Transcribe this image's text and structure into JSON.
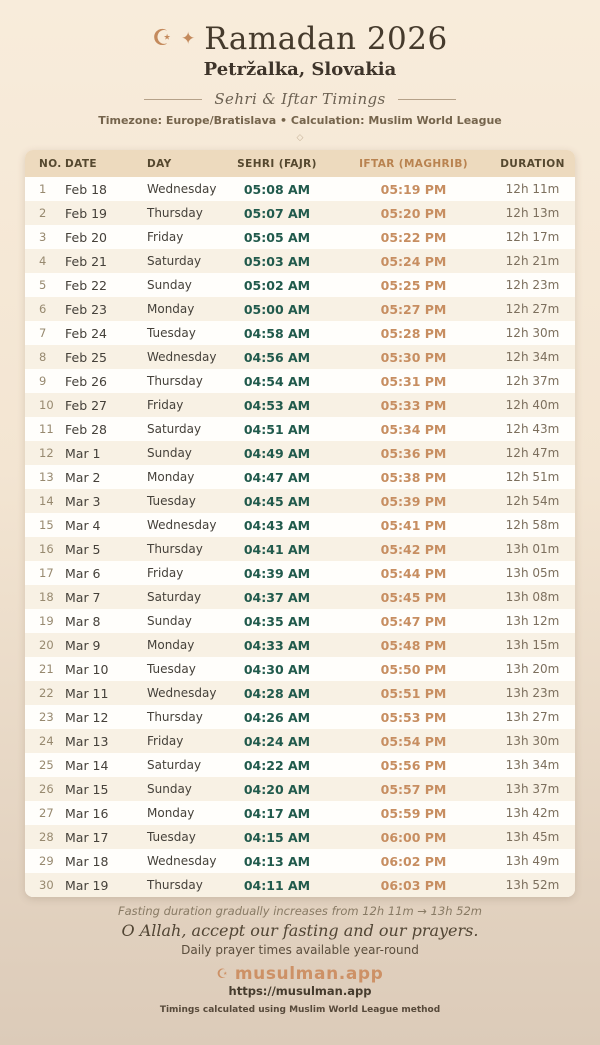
{
  "header": {
    "crescent_icon": "☪",
    "sparkle_icon": "✦",
    "title": "Ramadan 2026",
    "location": "Petržalka, Slovakia",
    "subtitle": "Sehri & Iftar Timings",
    "meta": "Timezone: Europe/Bratislava • Calculation: Muslim World League",
    "ornament": "◇"
  },
  "table": {
    "column_keys": [
      "no",
      "date",
      "day",
      "sehri",
      "iftar",
      "duration"
    ],
    "columns": [
      "NO.",
      "DATE",
      "DAY",
      "SEHRI (FAJR)",
      "IFTAR (MAGHRIB)",
      "DURATION"
    ],
    "rows": [
      [
        "1",
        "Feb 18",
        "Wednesday",
        "05:08 AM",
        "05:19 PM",
        "12h 11m"
      ],
      [
        "2",
        "Feb 19",
        "Thursday",
        "05:07 AM",
        "05:20 PM",
        "12h 13m"
      ],
      [
        "3",
        "Feb 20",
        "Friday",
        "05:05 AM",
        "05:22 PM",
        "12h 17m"
      ],
      [
        "4",
        "Feb 21",
        "Saturday",
        "05:03 AM",
        "05:24 PM",
        "12h 21m"
      ],
      [
        "5",
        "Feb 22",
        "Sunday",
        "05:02 AM",
        "05:25 PM",
        "12h 23m"
      ],
      [
        "6",
        "Feb 23",
        "Monday",
        "05:00 AM",
        "05:27 PM",
        "12h 27m"
      ],
      [
        "7",
        "Feb 24",
        "Tuesday",
        "04:58 AM",
        "05:28 PM",
        "12h 30m"
      ],
      [
        "8",
        "Feb 25",
        "Wednesday",
        "04:56 AM",
        "05:30 PM",
        "12h 34m"
      ],
      [
        "9",
        "Feb 26",
        "Thursday",
        "04:54 AM",
        "05:31 PM",
        "12h 37m"
      ],
      [
        "10",
        "Feb 27",
        "Friday",
        "04:53 AM",
        "05:33 PM",
        "12h 40m"
      ],
      [
        "11",
        "Feb 28",
        "Saturday",
        "04:51 AM",
        "05:34 PM",
        "12h 43m"
      ],
      [
        "12",
        "Mar 1",
        "Sunday",
        "04:49 AM",
        "05:36 PM",
        "12h 47m"
      ],
      [
        "13",
        "Mar 2",
        "Monday",
        "04:47 AM",
        "05:38 PM",
        "12h 51m"
      ],
      [
        "14",
        "Mar 3",
        "Tuesday",
        "04:45 AM",
        "05:39 PM",
        "12h 54m"
      ],
      [
        "15",
        "Mar 4",
        "Wednesday",
        "04:43 AM",
        "05:41 PM",
        "12h 58m"
      ],
      [
        "16",
        "Mar 5",
        "Thursday",
        "04:41 AM",
        "05:42 PM",
        "13h 01m"
      ],
      [
        "17",
        "Mar 6",
        "Friday",
        "04:39 AM",
        "05:44 PM",
        "13h 05m"
      ],
      [
        "18",
        "Mar 7",
        "Saturday",
        "04:37 AM",
        "05:45 PM",
        "13h 08m"
      ],
      [
        "19",
        "Mar 8",
        "Sunday",
        "04:35 AM",
        "05:47 PM",
        "13h 12m"
      ],
      [
        "20",
        "Mar 9",
        "Monday",
        "04:33 AM",
        "05:48 PM",
        "13h 15m"
      ],
      [
        "21",
        "Mar 10",
        "Tuesday",
        "04:30 AM",
        "05:50 PM",
        "13h 20m"
      ],
      [
        "22",
        "Mar 11",
        "Wednesday",
        "04:28 AM",
        "05:51 PM",
        "13h 23m"
      ],
      [
        "23",
        "Mar 12",
        "Thursday",
        "04:26 AM",
        "05:53 PM",
        "13h 27m"
      ],
      [
        "24",
        "Mar 13",
        "Friday",
        "04:24 AM",
        "05:54 PM",
        "13h 30m"
      ],
      [
        "25",
        "Mar 14",
        "Saturday",
        "04:22 AM",
        "05:56 PM",
        "13h 34m"
      ],
      [
        "26",
        "Mar 15",
        "Sunday",
        "04:20 AM",
        "05:57 PM",
        "13h 37m"
      ],
      [
        "27",
        "Mar 16",
        "Monday",
        "04:17 AM",
        "05:59 PM",
        "13h 42m"
      ],
      [
        "28",
        "Mar 17",
        "Tuesday",
        "04:15 AM",
        "06:00 PM",
        "13h 45m"
      ],
      [
        "29",
        "Mar 18",
        "Wednesday",
        "04:13 AM",
        "06:02 PM",
        "13h 49m"
      ],
      [
        "30",
        "Mar 19",
        "Thursday",
        "04:11 AM",
        "06:03 PM",
        "13h 52m"
      ]
    ]
  },
  "footer": {
    "duration_note": "Fasting duration gradually increases from 12h 11m → 13h 52m",
    "dua": "O Allah, accept our fasting and our prayers.",
    "availability": "Daily prayer times available year-round",
    "brand_icon": "☪",
    "brand_name": "musulman.app",
    "url": "https://musulman.app",
    "method_note": "Timings calculated using Muslim World League method"
  },
  "colors": {
    "background_top": "#f8ecdb",
    "background_bottom": "#dccbb9",
    "accent_orange": "#c78e61",
    "sehri_green": "#215a4c",
    "title_brown": "#453a2c",
    "table_header_bg": "#eddabe",
    "row_alt": "#f8f1e4",
    "brand_orange": "#cd9166"
  }
}
